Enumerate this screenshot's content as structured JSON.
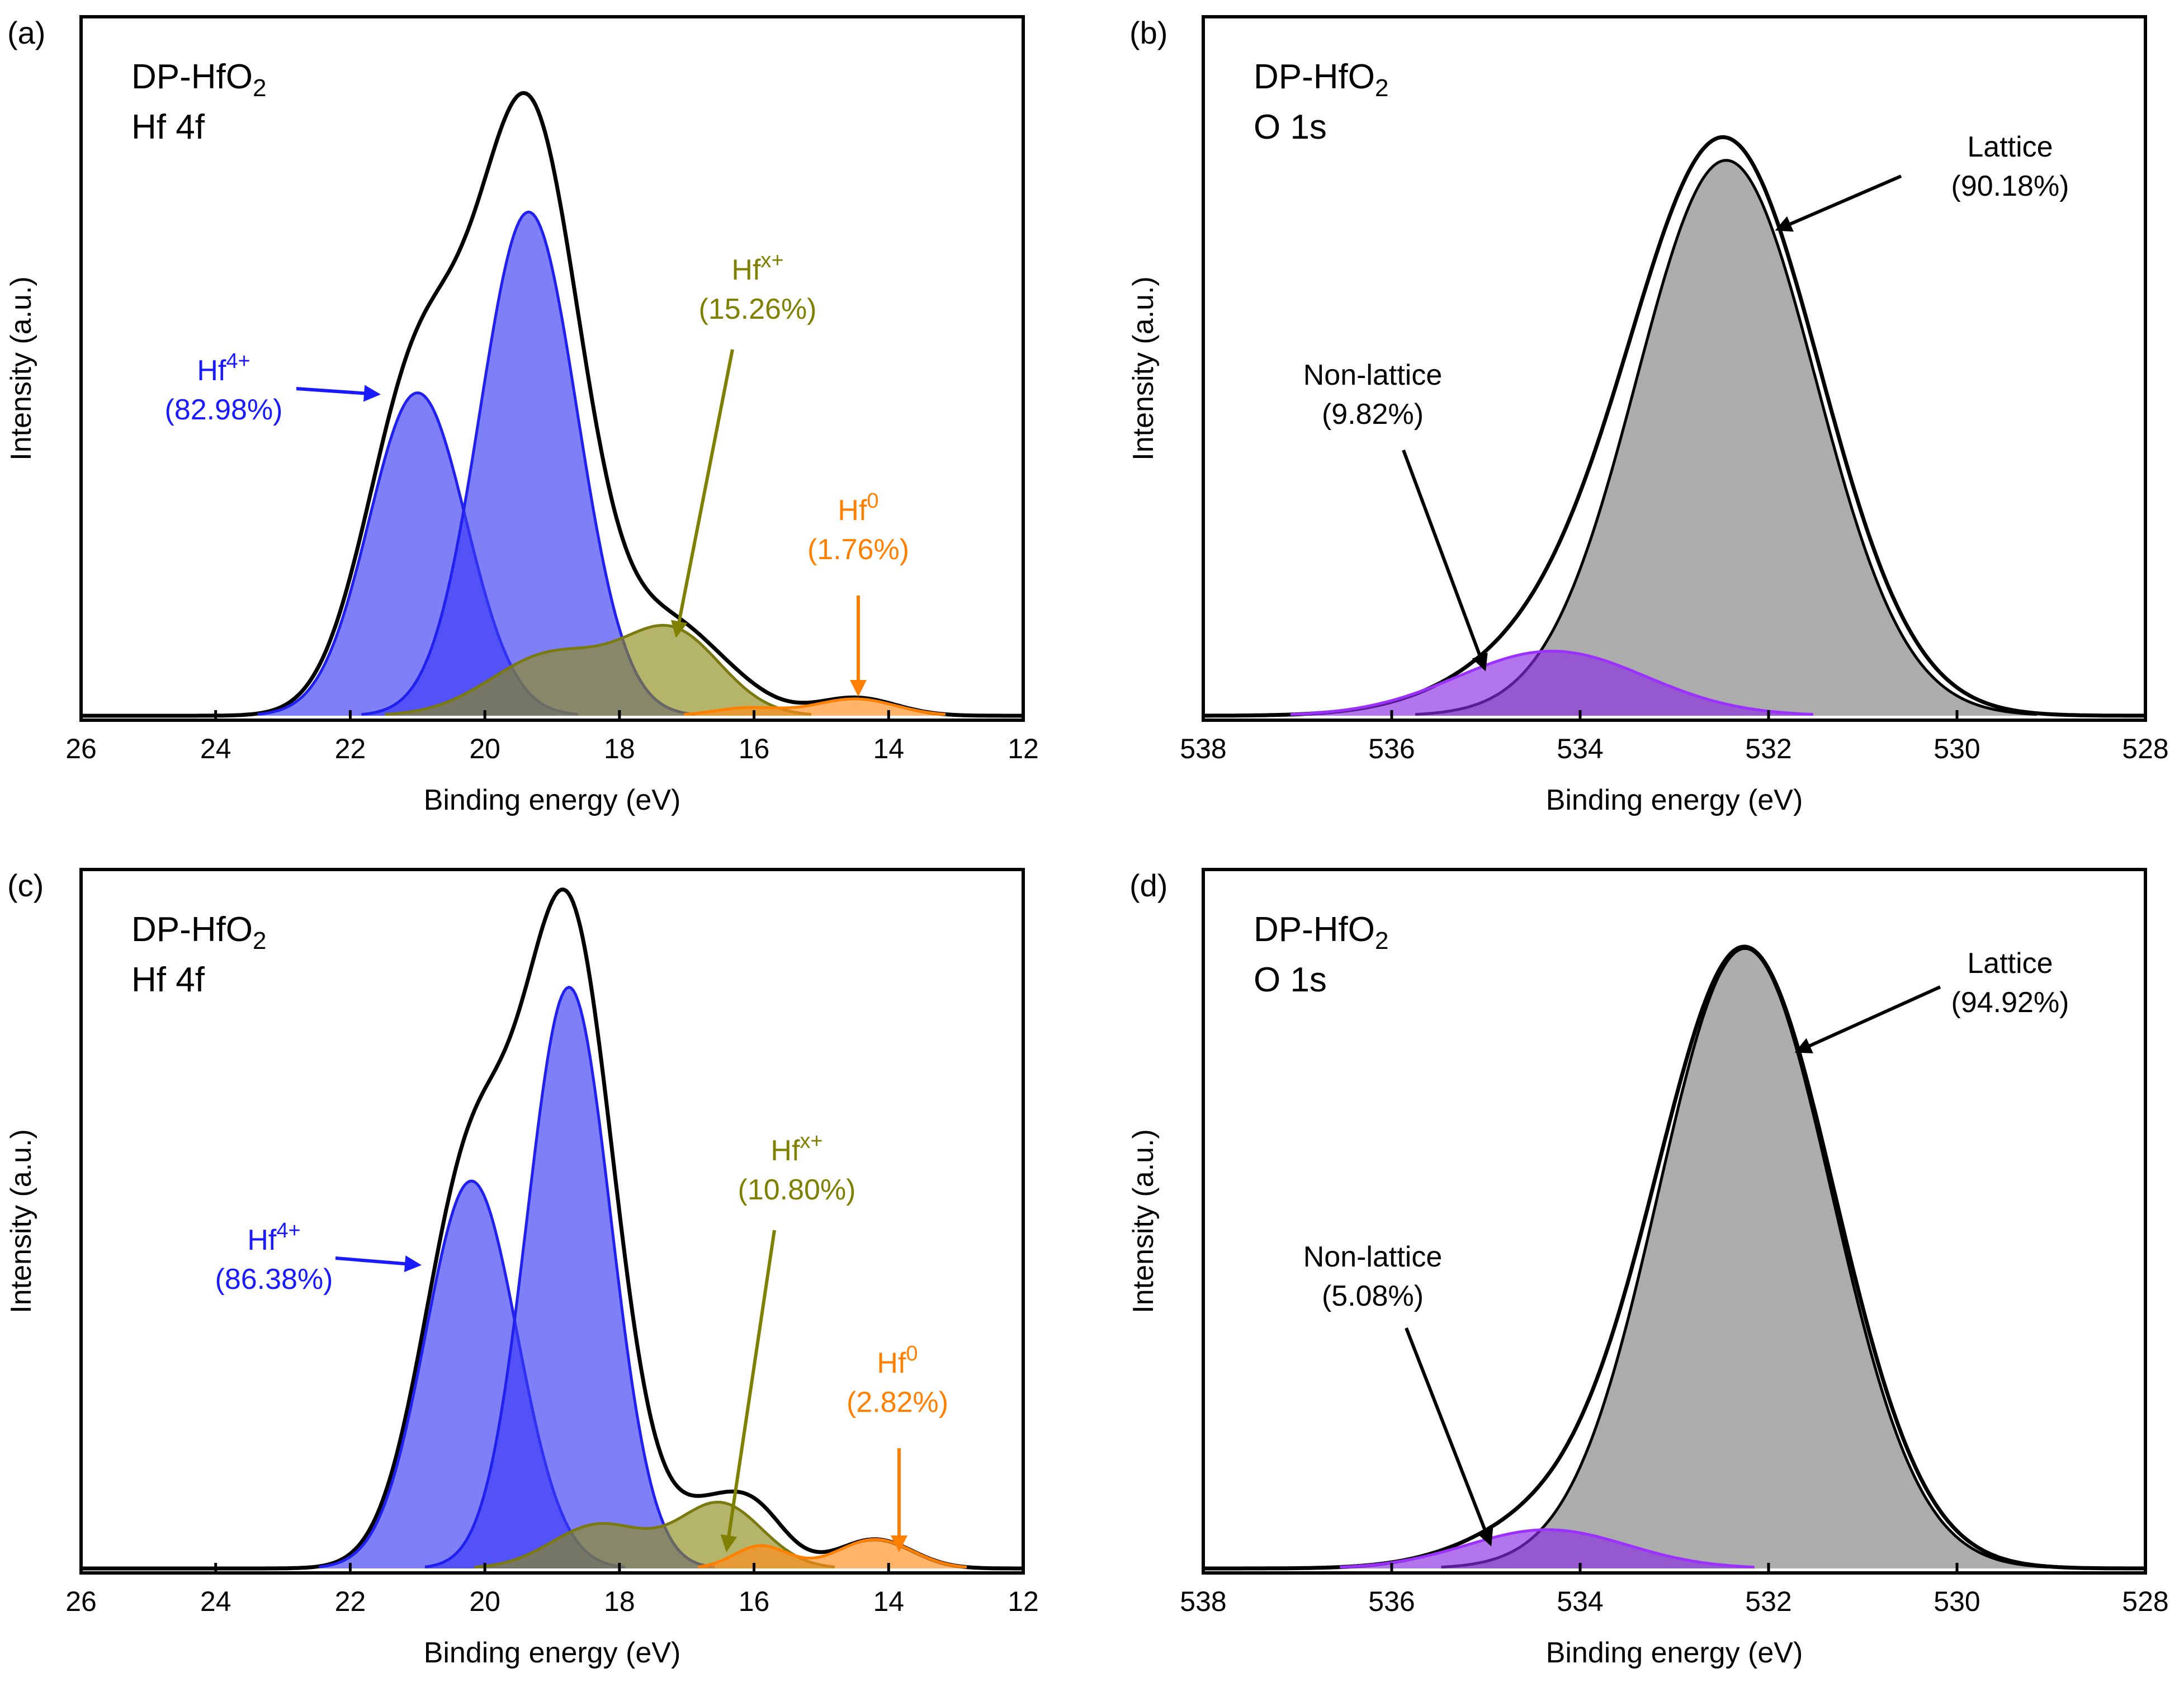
{
  "chart_data": [
    {
      "panel": "(a)",
      "type": "area",
      "title_lines": [
        "DP-HfO2",
        "Hf 4f"
      ],
      "xlabel": "Binding energy (eV)",
      "ylabel": "Intensity (a.u.)",
      "xlim": [
        26,
        12
      ],
      "xticks": [
        "26",
        "24",
        "22",
        "20",
        "18",
        "16",
        "14",
        "12"
      ],
      "ylim": [
        0,
        1.0
      ],
      "series": [
        {
          "role": "envelope",
          "color": "#000000",
          "fill": null,
          "peaks": [
            [
              21.0,
              0.52,
              0.75
            ],
            [
              19.35,
              0.82,
              0.75
            ],
            [
              19.0,
              0.1,
              0.9
            ],
            [
              17.2,
              0.13,
              0.75
            ],
            [
              16.1,
              0.012,
              0.5
            ],
            [
              14.5,
              0.028,
              0.6
            ]
          ]
        },
        {
          "role": "component",
          "color": "#2020f0",
          "fill": "#3b3bf5",
          "peaks": [
            [
              21.0,
              0.5,
              0.72
            ]
          ]
        },
        {
          "role": "component",
          "color": "#2020f0",
          "fill": "#3b3bf5",
          "peaks": [
            [
              19.35,
              0.78,
              0.72
            ]
          ]
        },
        {
          "role": "component",
          "color": "#7a7a10",
          "fill": "#8c8c1c",
          "peaks": [
            [
              19.0,
              0.095,
              0.9
            ],
            [
              17.2,
              0.125,
              0.72
            ]
          ]
        },
        {
          "role": "component",
          "color": "#ff8000",
          "fill": "#ff8c1a",
          "peaks": [
            [
              16.1,
              0.012,
              0.5
            ],
            [
              14.5,
              0.026,
              0.6
            ]
          ]
        }
      ],
      "annotations": [
        {
          "label": "Hf4+",
          "base": "Hf",
          "sup": "4+",
          "value": "(82.98%)",
          "color": "#1a1aff"
        },
        {
          "label": "Hfx+",
          "base": "Hf",
          "sup": "x+",
          "value": "(15.26%)",
          "color": "#7f7f00"
        },
        {
          "label": "Hf0",
          "base": "Hf",
          "sup": "0",
          "value": "(1.76%)",
          "color": "#ff8000"
        }
      ]
    },
    {
      "panel": "(b)",
      "type": "area",
      "title_lines": [
        "DP-HfO2",
        "O 1s"
      ],
      "xlabel": "Binding energy (eV)",
      "ylabel": "Intensity (a.u.)",
      "xlim": [
        538,
        528
      ],
      "xticks": [
        "538",
        "536",
        "534",
        "532",
        "530",
        "528"
      ],
      "ylim": [
        0,
        1.0
      ],
      "series": [
        {
          "role": "envelope",
          "color": "#000000",
          "fill": null,
          "peaks": [
            [
              532.45,
              0.88,
              1.0
            ],
            [
              534.3,
              0.085,
              1.0
            ]
          ]
        },
        {
          "role": "component",
          "color": "#000000",
          "fill": "#808080",
          "peaks": [
            [
              532.45,
              0.86,
              0.95
            ]
          ]
        },
        {
          "role": "component",
          "color": "#9b30ff",
          "fill": "#8a2be2",
          "peaks": [
            [
              534.3,
              0.1,
              1.0
            ]
          ]
        }
      ],
      "annotations": [
        {
          "label": "Lattice",
          "value": "(90.18%)",
          "color": "#000000"
        },
        {
          "label": "Non-lattice",
          "value": "(9.82%)",
          "color": "#000000"
        }
      ]
    },
    {
      "panel": "(c)",
      "type": "area",
      "title_lines": [
        "DP-HfO2",
        "Hf 4f"
      ],
      "xlabel": "Binding energy (eV)",
      "ylabel": "Intensity (a.u.)",
      "xlim": [
        26,
        12
      ],
      "xticks": [
        "26",
        "24",
        "22",
        "20",
        "18",
        "16",
        "14",
        "12"
      ],
      "ylim": [
        0,
        1.0
      ],
      "series": [
        {
          "role": "envelope",
          "color": "#000000",
          "fill": null,
          "peaks": [
            [
              20.2,
              0.62,
              0.7
            ],
            [
              18.75,
              0.92,
              0.65
            ],
            [
              18.2,
              0.07,
              0.7
            ],
            [
              16.5,
              0.1,
              0.65
            ],
            [
              15.9,
              0.035,
              0.4
            ],
            [
              14.2,
              0.045,
              0.55
            ]
          ]
        },
        {
          "role": "component",
          "color": "#2020f0",
          "fill": "#3b3bf5",
          "peaks": [
            [
              20.2,
              0.6,
              0.68
            ]
          ]
        },
        {
          "role": "component",
          "color": "#2020f0",
          "fill": "#3b3bf5",
          "peaks": [
            [
              18.75,
              0.9,
              0.62
            ]
          ]
        },
        {
          "role": "component",
          "color": "#7a7a10",
          "fill": "#8c8c1c",
          "peaks": [
            [
              18.3,
              0.068,
              0.7
            ],
            [
              16.5,
              0.1,
              0.62
            ]
          ]
        },
        {
          "role": "component",
          "color": "#ff8000",
          "fill": "#ff8c1a",
          "peaks": [
            [
              15.9,
              0.035,
              0.4
            ],
            [
              14.2,
              0.045,
              0.55
            ]
          ]
        }
      ],
      "annotations": [
        {
          "label": "Hf4+",
          "base": "Hf",
          "sup": "4+",
          "value": "(86.38%)",
          "color": "#1a1aff"
        },
        {
          "label": "Hfx+",
          "base": "Hf",
          "sup": "x+",
          "value": "(10.80%)",
          "color": "#7f7f00"
        },
        {
          "label": "Hf0",
          "base": "Hf",
          "sup": "0",
          "value": "(2.82%)",
          "color": "#ff8000"
        }
      ]
    },
    {
      "panel": "(d)",
      "type": "area",
      "title_lines": [
        "DP-HfO2",
        "O 1s"
      ],
      "xlabel": "Binding energy (eV)",
      "ylabel": "Intensity (a.u.)",
      "xlim": [
        538,
        528
      ],
      "xticks": [
        "538",
        "536",
        "534",
        "532",
        "530",
        "528"
      ],
      "ylim": [
        0,
        1.0
      ],
      "series": [
        {
          "role": "envelope",
          "color": "#000000",
          "fill": null,
          "peaks": [
            [
              532.25,
              0.96,
              0.95
            ],
            [
              534.35,
              0.06,
              0.85
            ]
          ]
        },
        {
          "role": "component",
          "color": "#000000",
          "fill": "#808080",
          "peaks": [
            [
              532.25,
              0.96,
              0.92
            ]
          ]
        },
        {
          "role": "component",
          "color": "#9b30ff",
          "fill": "#8a2be2",
          "peaks": [
            [
              534.35,
              0.06,
              0.85
            ]
          ]
        }
      ],
      "annotations": [
        {
          "label": "Lattice",
          "value": "(94.92%)",
          "color": "#000000"
        },
        {
          "label": "Non-lattice",
          "value": "(5.08%)",
          "color": "#000000"
        }
      ]
    }
  ]
}
